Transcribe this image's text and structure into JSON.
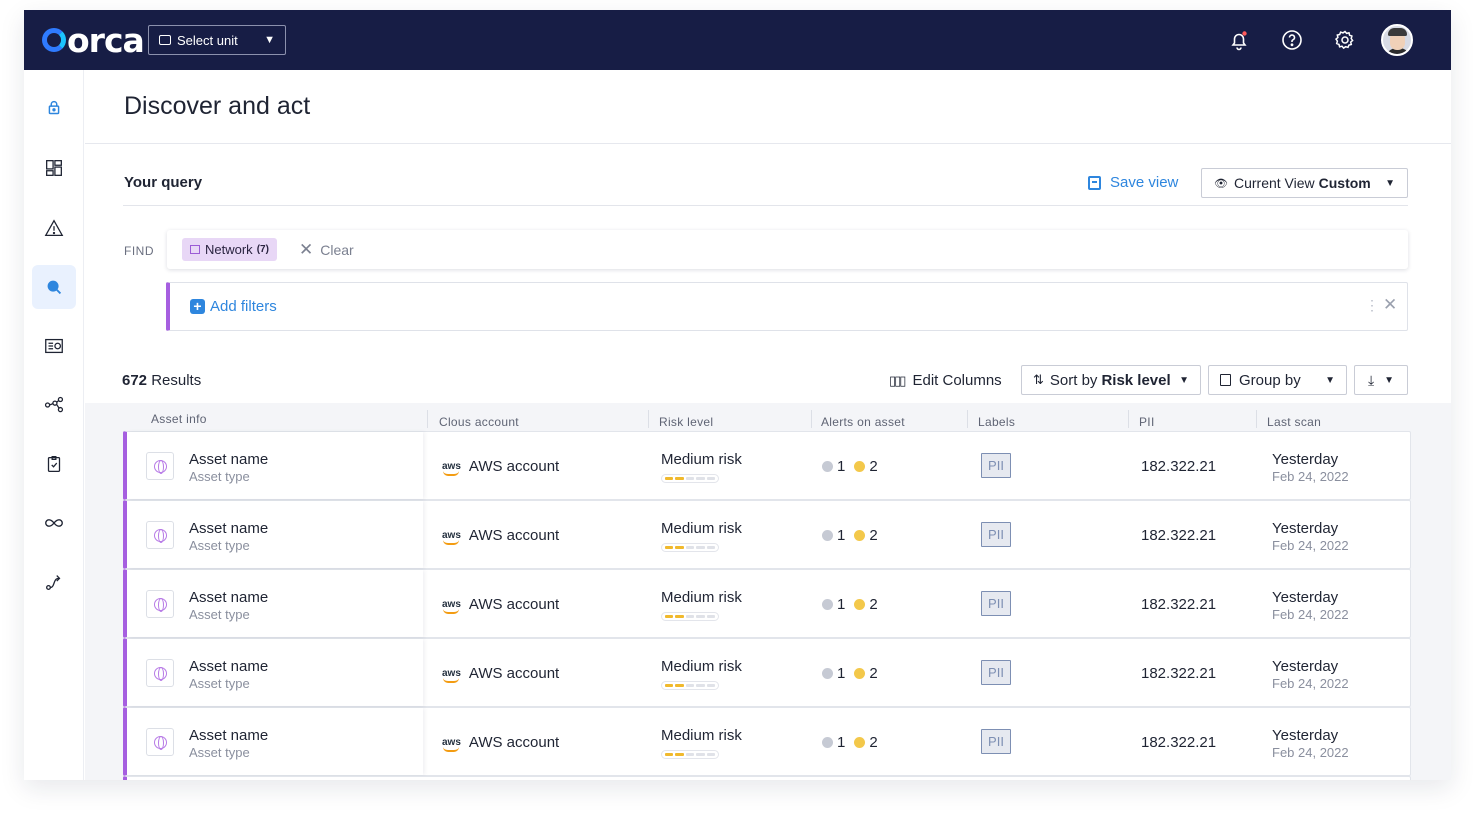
{
  "header": {
    "logo_text": "orca",
    "unit_select_label": "Select unit",
    "icons": [
      "bell-icon",
      "help-icon",
      "gear-icon",
      "avatar"
    ]
  },
  "sidebar": {
    "items": [
      {
        "name": "lock",
        "active": false
      },
      {
        "name": "dashboard",
        "active": false
      },
      {
        "name": "alerts",
        "active": false
      },
      {
        "name": "discovery",
        "active": true
      },
      {
        "name": "inventory",
        "active": false
      },
      {
        "name": "graph",
        "active": false
      },
      {
        "name": "compliance",
        "active": false
      },
      {
        "name": "integrations",
        "active": false
      },
      {
        "name": "workflows",
        "active": false
      }
    ]
  },
  "page": {
    "title": "Discover and act"
  },
  "query": {
    "label": "Your query",
    "save_view": "Save view",
    "current_view_label": "Current View",
    "current_view_value": "Custom",
    "find_label": "FIND",
    "chip_label": "Network",
    "chip_count": "(7)",
    "clear_label": "Clear",
    "add_filters": "Add filters"
  },
  "toolbar": {
    "results_count": "672",
    "results_label": "Results",
    "edit_columns": "Edit Columns",
    "sort_prefix": "Sort by",
    "sort_value": "Risk level",
    "group_by": "Group by"
  },
  "table": {
    "columns": [
      "Asset info",
      "Clous account",
      "Risk level",
      "Alerts on asset",
      "Labels",
      "PII",
      "Last scan"
    ],
    "rows": [
      {
        "asset_name": "Asset name",
        "asset_type": "Asset type",
        "account_logo": "aws",
        "account": "AWS account",
        "risk": "Medium risk",
        "risk_level_filled": 2,
        "risk_level_total": 5,
        "alerts_info": "1",
        "alerts_warn": "2",
        "label": "PII",
        "pii": "182.322.21",
        "scan_day": "Yesterday",
        "scan_date": "Feb 24, 2022"
      },
      {
        "asset_name": "Asset name",
        "asset_type": "Asset type",
        "account_logo": "aws",
        "account": "AWS account",
        "risk": "Medium risk",
        "risk_level_filled": 2,
        "risk_level_total": 5,
        "alerts_info": "1",
        "alerts_warn": "2",
        "label": "PII",
        "pii": "182.322.21",
        "scan_day": "Yesterday",
        "scan_date": "Feb 24, 2022"
      },
      {
        "asset_name": "Asset name",
        "asset_type": "Asset type",
        "account_logo": "aws",
        "account": "AWS account",
        "risk": "Medium risk",
        "risk_level_filled": 2,
        "risk_level_total": 5,
        "alerts_info": "1",
        "alerts_warn": "2",
        "label": "PII",
        "pii": "182.322.21",
        "scan_day": "Yesterday",
        "scan_date": "Feb 24, 2022"
      },
      {
        "asset_name": "Asset name",
        "asset_type": "Asset type",
        "account_logo": "aws",
        "account": "AWS account",
        "risk": "Medium risk",
        "risk_level_filled": 2,
        "risk_level_total": 5,
        "alerts_info": "1",
        "alerts_warn": "2",
        "label": "PII",
        "pii": "182.322.21",
        "scan_day": "Yesterday",
        "scan_date": "Feb 24, 2022"
      },
      {
        "asset_name": "Asset name",
        "asset_type": "Asset type",
        "account_logo": "aws",
        "account": "AWS account",
        "risk": "Medium risk",
        "risk_level_filled": 2,
        "risk_level_total": 5,
        "alerts_info": "1",
        "alerts_warn": "2",
        "label": "PII",
        "pii": "182.322.21",
        "scan_day": "Yesterday",
        "scan_date": "Feb 24, 2022"
      }
    ]
  },
  "colors": {
    "topbar": "#171d45",
    "accent": "#2e86de",
    "row_marker": "#a65fe0",
    "chip_bg": "#e8d7f6",
    "risk_medium": "#f0b92d"
  }
}
